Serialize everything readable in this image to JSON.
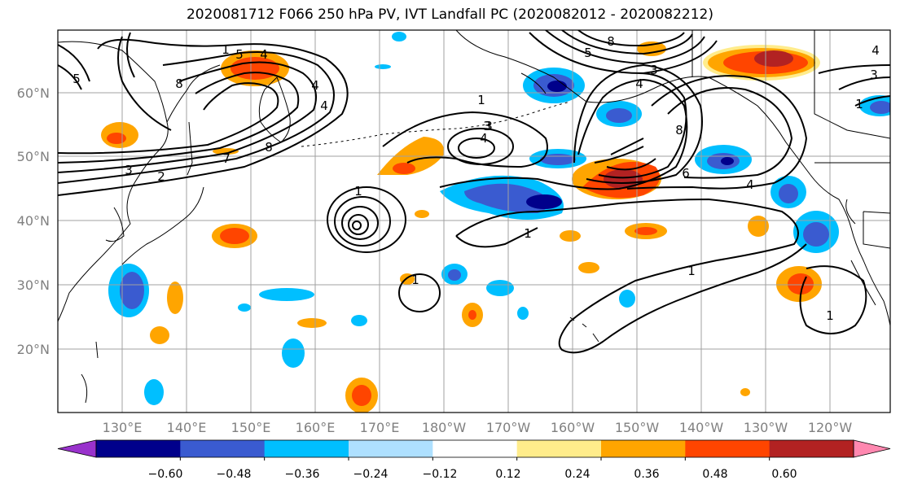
{
  "title": "2020081712 F066 250 hPa PV, IVT Landfall PC (2020082012 - 2020082212)",
  "map": {
    "lat_ticks": [
      "60°N",
      "50°N",
      "40°N",
      "30°N",
      "20°N"
    ],
    "lon_ticks": [
      "130°E",
      "140°E",
      "150°E",
      "160°E",
      "170°E",
      "180°W",
      "170°W",
      "160°W",
      "150°W",
      "140°W",
      "130°W",
      "120°W"
    ],
    "colors": {
      "land_outline": "#000000",
      "grid": "#a0a0a0",
      "contour": "#000000"
    }
  },
  "contour_labels": [
    "5",
    "5",
    "4",
    "8",
    "4",
    "1",
    "3",
    "4",
    "8",
    "7",
    "2",
    "3",
    "1",
    "3",
    "4",
    "1",
    "1",
    "1",
    "1",
    "8",
    "5",
    "3",
    "4",
    "1",
    "8",
    "6",
    "4",
    "3",
    "4",
    "1"
  ],
  "colorbar": {
    "ticks": [
      "−0.60",
      "−0.48",
      "−0.36",
      "−0.24",
      "−0.12",
      "0.12",
      "0.24",
      "0.36",
      "0.48",
      "0.60"
    ],
    "colors": [
      "#9932cc",
      "#00008b",
      "#3a5bd0",
      "#00bfff",
      "#aee0ff",
      "#ffffff",
      "#ffec8b",
      "#ffa500",
      "#ff4500",
      "#b22222",
      "#ff88b0"
    ]
  }
}
